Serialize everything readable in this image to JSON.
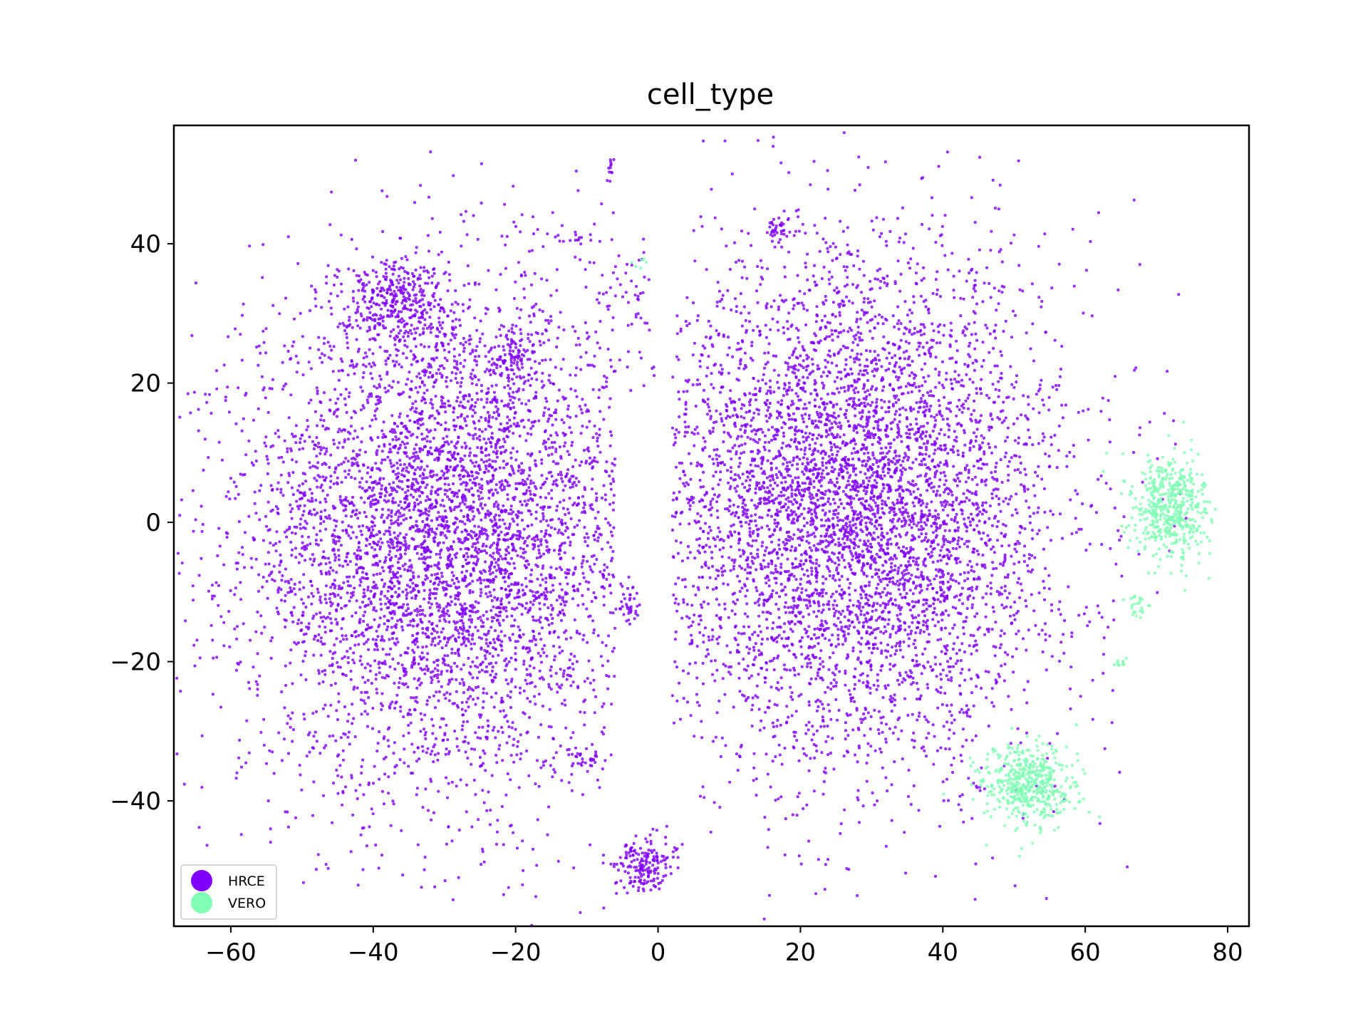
{
  "chart_data": {
    "type": "scatter",
    "title": "cell_type",
    "xlabel": "",
    "ylabel": "",
    "xlim": [
      -68,
      83
    ],
    "ylim": [
      -58,
      57
    ],
    "xticks": [
      -60,
      -40,
      -20,
      0,
      20,
      40,
      60,
      80
    ],
    "yticks": [
      -40,
      -20,
      0,
      20,
      40
    ],
    "xtick_labels": [
      "−60",
      "−40",
      "−20",
      "0",
      "20",
      "40",
      "60",
      "80"
    ],
    "ytick_labels": [
      "−40",
      "−20",
      "0",
      "20",
      "40"
    ],
    "grid": false,
    "legend_position": "bottom-left",
    "series": [
      {
        "name": "HRCE",
        "color": "#8000ff",
        "clusters": [
          {
            "cx": -30,
            "cy": -2,
            "sx": 14,
            "sy": 18,
            "n": 5200
          },
          {
            "cx": -37,
            "cy": 32,
            "sx": 4,
            "sy": 3,
            "n": 350
          },
          {
            "cx": -20,
            "cy": 24,
            "sx": 2,
            "sy": 2,
            "n": 80
          },
          {
            "cx": 28,
            "cy": 2,
            "sx": 14,
            "sy": 18,
            "n": 5600
          },
          {
            "cx": 17,
            "cy": 42,
            "sx": 1.2,
            "sy": 1,
            "n": 40
          },
          {
            "cx": -2,
            "cy": -49,
            "sx": 2,
            "sy": 2,
            "n": 180
          },
          {
            "cx": -4,
            "cy": -12,
            "sx": 1,
            "sy": 1.5,
            "n": 40
          },
          {
            "cx": -10,
            "cy": -34,
            "sx": 1.5,
            "sy": 0.6,
            "n": 25
          },
          {
            "cx": -6.5,
            "cy": 51,
            "sx": 0.3,
            "sy": 1,
            "n": 12
          },
          {
            "cx": -12,
            "cy": 41,
            "sx": 1.5,
            "sy": 0.4,
            "n": 15
          },
          {
            "cx": -4,
            "cy": 32,
            "sx": 2,
            "sy": 5,
            "n": 60
          }
        ]
      },
      {
        "name": "VERO",
        "color": "#80ffb4",
        "clusters": [
          {
            "cx": 72,
            "cy": 2,
            "sx": 2.6,
            "sy": 3.8,
            "n": 520
          },
          {
            "cx": 52,
            "cy": -38,
            "sx": 3.2,
            "sy": 2.9,
            "n": 520
          },
          {
            "cx": 67.5,
            "cy": -12,
            "sx": 0.8,
            "sy": 1,
            "n": 25
          },
          {
            "cx": 65,
            "cy": -20,
            "sx": 0.5,
            "sy": 0.5,
            "n": 10
          },
          {
            "cx": -3,
            "cy": 37,
            "sx": 0.6,
            "sy": 0.5,
            "n": 6
          }
        ]
      }
    ]
  }
}
